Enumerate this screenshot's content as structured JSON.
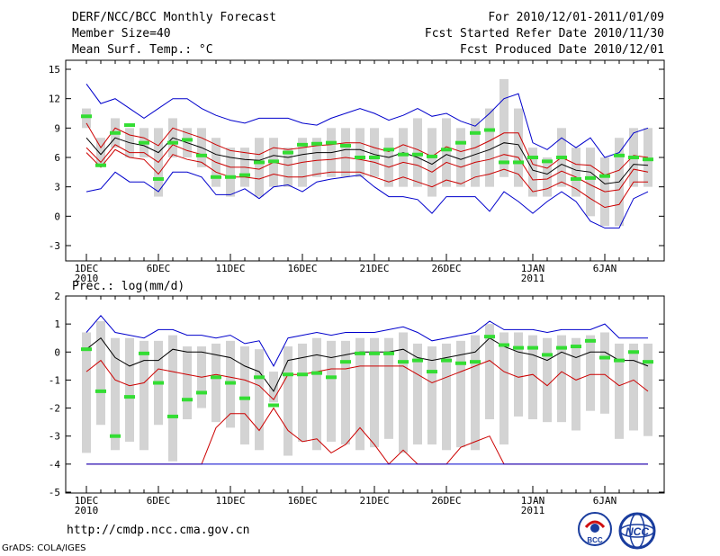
{
  "header": {
    "title": "DERF/NCC/BCC Monthly Forecast",
    "member_size": "Member Size=40",
    "variable": "Mean Surf. Temp.: °C",
    "period": "For 2010/12/01-2011/01/09",
    "started": "Fcst Started Refer Date 2010/11/30",
    "produced": "Fcst Produced Date 2010/12/01"
  },
  "precip_label": "Prec.: log(mm/d)",
  "footer": {
    "url": "http://cmdp.ncc.cma.gov.cn",
    "grads": "GrADS: COLA/IGES"
  },
  "logos": {
    "bcc": "BCC",
    "ncc": "NCC"
  },
  "colors": {
    "box": "#d3d3d3",
    "median": "#000000",
    "mean": "#cc0000",
    "extreme": "#0000cc",
    "obs": "#33dd33"
  },
  "chart_data": [
    {
      "type": "line",
      "title": "Mean Surf. Temp.: °C",
      "x_days": 40,
      "xticks": [
        {
          "day": 1,
          "label": "1DEC",
          "sub": "2010"
        },
        {
          "day": 6,
          "label": "6DEC",
          "sub": ""
        },
        {
          "day": 11,
          "label": "11DEC",
          "sub": ""
        },
        {
          "day": 16,
          "label": "16DEC",
          "sub": ""
        },
        {
          "day": 21,
          "label": "21DEC",
          "sub": ""
        },
        {
          "day": 26,
          "label": "26DEC",
          "sub": ""
        },
        {
          "day": 32,
          "label": "1JAN",
          "sub": "2011"
        },
        {
          "day": 37,
          "label": "6JAN",
          "sub": ""
        }
      ],
      "ylim": [
        -5,
        16
      ],
      "yticks": [
        15,
        12,
        9,
        6,
        3,
        0,
        -3
      ],
      "ytick_labels": [
        "15",
        "12",
        "9",
        "6",
        "3",
        "0",
        "-3"
      ],
      "series": [
        {
          "name": "max",
          "color": "#0000cc",
          "values": [
            13.5,
            11.5,
            12,
            11,
            10,
            11,
            12,
            12,
            11,
            10.3,
            9.8,
            9.5,
            10,
            10,
            10,
            9.5,
            9.3,
            10,
            10.5,
            11,
            10.5,
            9.8,
            10.3,
            11,
            10.2,
            10.5,
            9.7,
            9.2,
            10.5,
            12,
            12.5,
            7.5,
            6.8,
            8,
            7,
            8,
            6,
            6.5,
            8.5,
            9
          ]
        },
        {
          "name": "mean_hi",
          "color": "#cc0000",
          "values": [
            9.5,
            7,
            9,
            8.3,
            8,
            7.2,
            9,
            8.5,
            8,
            7.3,
            6.7,
            6.5,
            6.3,
            7,
            6.8,
            7,
            7.2,
            7.3,
            7.5,
            7.5,
            7,
            6.6,
            7.3,
            6.8,
            6.1,
            7.1,
            6.6,
            7,
            7.7,
            8.5,
            8.5,
            5.3,
            4.9,
            6,
            5.3,
            5.2,
            4.2,
            4.7,
            6.2,
            6
          ]
        },
        {
          "name": "median",
          "color": "#000000",
          "values": [
            8,
            6.3,
            8,
            7.5,
            7.2,
            6.5,
            8,
            7.5,
            7,
            6.3,
            6,
            5.8,
            5.7,
            6.2,
            6,
            6.3,
            6.5,
            6.5,
            6.8,
            6.8,
            6.3,
            6,
            6.5,
            6,
            5.3,
            6.3,
            5.8,
            6.3,
            6.8,
            7.5,
            7.3,
            4.7,
            4.3,
            5.3,
            4.7,
            4.5,
            3.3,
            3.5,
            5.3,
            5.2
          ]
        },
        {
          "name": "mean_lo",
          "color": "#cc0000",
          "values": [
            7,
            5.5,
            7.3,
            6.5,
            6.5,
            5.5,
            7.3,
            6.7,
            6.3,
            5.5,
            5,
            5,
            4.8,
            5.5,
            5.2,
            5.5,
            5.7,
            5.8,
            6,
            5.8,
            5.5,
            5,
            5.5,
            5.2,
            4.5,
            5.5,
            5,
            5.5,
            5.8,
            6.3,
            6,
            3.7,
            3.8,
            4.6,
            4,
            3.2,
            2.5,
            2.7,
            4.8,
            4.5
          ]
        },
        {
          "name": "mean_lo2",
          "color": "#cc0000",
          "values": [
            6.5,
            5,
            6.8,
            6,
            5.8,
            4.3,
            6.3,
            5.8,
            5.5,
            4.5,
            4,
            4,
            3.8,
            4.3,
            4,
            4,
            4.3,
            4.5,
            4.5,
            4.5,
            4,
            3.5,
            4,
            3.5,
            3,
            3.7,
            3.3,
            4,
            4.3,
            4.8,
            4.3,
            2.5,
            2.8,
            3.5,
            2.8,
            1.8,
            0.9,
            1.2,
            3.5,
            3.5
          ]
        },
        {
          "name": "min",
          "color": "#0000cc",
          "values": [
            2.5,
            2.8,
            4.5,
            3.5,
            3.5,
            2.5,
            4.5,
            4.5,
            4,
            2.2,
            2.2,
            2.8,
            1.8,
            3,
            3.2,
            2.5,
            3.5,
            3.8,
            4,
            4.2,
            3,
            2,
            2,
            1.7,
            0.3,
            2,
            2,
            2,
            0.5,
            2.5,
            1.5,
            0.3,
            1.5,
            2.5,
            1.5,
            -0.5,
            -1.2,
            -1.2,
            1.8,
            2.5
          ]
        }
      ],
      "boxes": {
        "low": [
          9,
          5,
          7,
          6,
          6,
          2,
          6,
          6,
          5,
          3,
          2,
          3,
          2,
          3,
          3,
          3,
          4,
          4,
          4,
          4,
          4,
          3,
          3,
          3,
          2,
          3,
          3,
          3,
          3,
          4,
          3,
          2,
          2,
          3,
          2,
          0,
          -1,
          -1,
          3,
          3
        ],
        "high": [
          11,
          8,
          10,
          9,
          9,
          9,
          10,
          9,
          9,
          8,
          7,
          7,
          8,
          8,
          7,
          8,
          8,
          9,
          9,
          9,
          9,
          8,
          9,
          10,
          9,
          10,
          9,
          10,
          11,
          14,
          11,
          7,
          6,
          9,
          7,
          7,
          6,
          8,
          9,
          9
        ]
      },
      "observed": [
        10.2,
        5.2,
        8.5,
        9.3,
        7.5,
        3.8,
        7.5,
        7.8,
        6.2,
        4,
        4,
        4.2,
        5.5,
        5.6,
        6.5,
        7.3,
        7.4,
        7.5,
        7.2,
        6,
        6,
        6.8,
        6.3,
        6.3,
        6.1,
        6.8,
        7.5,
        8.5,
        8.8,
        5.5,
        5.5,
        6,
        5.6,
        6,
        3.8,
        3.9,
        4.1,
        6.2,
        6,
        5.8
      ]
    },
    {
      "type": "line",
      "title": "Prec.: log(mm/d)",
      "x_days": 40,
      "ylim": [
        -5,
        2
      ],
      "yticks": [
        2,
        1,
        0,
        -1,
        -2,
        -3,
        -4,
        -5
      ],
      "ytick_labels": [
        "2",
        "1",
        "0",
        "-1",
        "-2",
        "-3",
        "-4",
        "-5"
      ],
      "series": [
        {
          "name": "max",
          "color": "#0000cc",
          "values": [
            0.7,
            1.3,
            0.7,
            0.6,
            0.5,
            0.8,
            0.8,
            0.6,
            0.6,
            0.5,
            0.6,
            0.3,
            0.4,
            -0.5,
            0.5,
            0.6,
            0.7,
            0.6,
            0.7,
            0.7,
            0.7,
            0.8,
            0.9,
            0.7,
            0.4,
            0.5,
            0.6,
            0.7,
            1.1,
            0.8,
            0.8,
            0.8,
            0.7,
            0.8,
            0.8,
            0.8,
            1,
            0.5,
            0.5,
            0.5
          ]
        },
        {
          "name": "median",
          "color": "#000000",
          "values": [
            0.1,
            0.5,
            -0.2,
            -0.5,
            -0.3,
            -0.3,
            0.1,
            0,
            0,
            -0.1,
            -0.2,
            -0.5,
            -0.7,
            -1.4,
            -0.3,
            -0.2,
            -0.1,
            -0.2,
            -0.1,
            0,
            0,
            0,
            0.1,
            -0.2,
            -0.3,
            -0.2,
            -0.1,
            0,
            0.5,
            0.2,
            0,
            -0.1,
            -0.3,
            0,
            -0.2,
            0,
            0,
            -0.3,
            -0.3,
            -0.5
          ]
        },
        {
          "name": "mean",
          "color": "#cc0000",
          "values": [
            -0.7,
            -0.3,
            -1,
            -1.2,
            -1.1,
            -0.6,
            -0.7,
            -0.8,
            -0.9,
            -0.8,
            -0.9,
            -1,
            -1.2,
            -1.7,
            -0.8,
            -0.8,
            -0.7,
            -0.6,
            -0.6,
            -0.5,
            -0.5,
            -0.5,
            -0.5,
            -0.8,
            -1.1,
            -0.9,
            -0.7,
            -0.5,
            -0.3,
            -0.7,
            -0.9,
            -0.8,
            -1.2,
            -0.7,
            -1,
            -0.8,
            -0.8,
            -1.2,
            -1,
            -1.4
          ]
        },
        {
          "name": "low",
          "color": "#cc0000",
          "values": [
            -4,
            -4,
            -4,
            -4,
            -4,
            -4,
            -4,
            -4,
            -4,
            -2.7,
            -2.2,
            -2.2,
            -2.8,
            -2,
            -2.8,
            -3.2,
            -3.1,
            -3.6,
            -3.3,
            -2.7,
            -3.3,
            -4,
            -3.5,
            -4,
            -4,
            -4,
            -3.4,
            -3.2,
            -3,
            -4,
            -4,
            -4,
            -4,
            -4,
            -4,
            -4,
            -4,
            -4,
            -4,
            -4
          ]
        },
        {
          "name": "min",
          "color": "#0000cc",
          "values": [
            -4,
            -4,
            -4,
            -4,
            -4,
            -4,
            -4,
            -4,
            -4,
            -4,
            -4,
            -4,
            -4,
            -4,
            -4,
            -4,
            -4,
            -4,
            -4,
            -4,
            -4,
            -4,
            -4,
            -4,
            -4,
            -4,
            -4,
            -4,
            -4,
            -4,
            -4,
            -4,
            -4,
            -4,
            -4,
            -4,
            -4,
            -4,
            -4,
            -4
          ]
        }
      ],
      "boxes": {
        "low": [
          -3.6,
          -2.6,
          -3.5,
          -3.2,
          -3.5,
          -2.6,
          -3.9,
          -2.4,
          -2,
          -2.5,
          -2.7,
          -3.3,
          -3.5,
          -1.8,
          -3.7,
          -3.2,
          -3.5,
          -3.2,
          -3.3,
          -3.5,
          -3.4,
          -3.1,
          -3.6,
          -3.3,
          -3.3,
          -3.5,
          -3.4,
          -3.5,
          -2.4,
          -3.3,
          -2.3,
          -2.4,
          -2.5,
          -2.5,
          -2.8,
          -2.1,
          -2.2,
          -3.1,
          -2.8,
          -3
        ],
        "high": [
          0.7,
          1.1,
          0.5,
          0.5,
          0.4,
          0.4,
          0.6,
          0.2,
          0.2,
          0.3,
          0.4,
          0.2,
          0.1,
          -0.7,
          0.2,
          0.3,
          0.5,
          0.4,
          0.4,
          0.5,
          0.5,
          0.5,
          0.7,
          0.3,
          0.2,
          0.3,
          0.4,
          0.6,
          1,
          0.7,
          0.7,
          0.6,
          0.5,
          0.6,
          0.5,
          0.6,
          0.7,
          0.3,
          0.3,
          0.3
        ]
      },
      "observed": [
        0.1,
        -1.4,
        -3,
        -1.6,
        -0.05,
        -1.1,
        -2.3,
        -1.7,
        -1.45,
        -0.9,
        -1.1,
        -1.65,
        -0.9,
        -1.9,
        -0.8,
        -0.8,
        -0.75,
        -0.9,
        -0.35,
        -0.05,
        -0.05,
        -0.05,
        -0.35,
        -0.3,
        -0.7,
        -0.3,
        -0.4,
        -0.35,
        0.55,
        0.25,
        0.15,
        0.15,
        -0.1,
        0.15,
        0.2,
        0.4,
        -0.2,
        -0.3,
        0,
        -0.35
      ]
    }
  ]
}
